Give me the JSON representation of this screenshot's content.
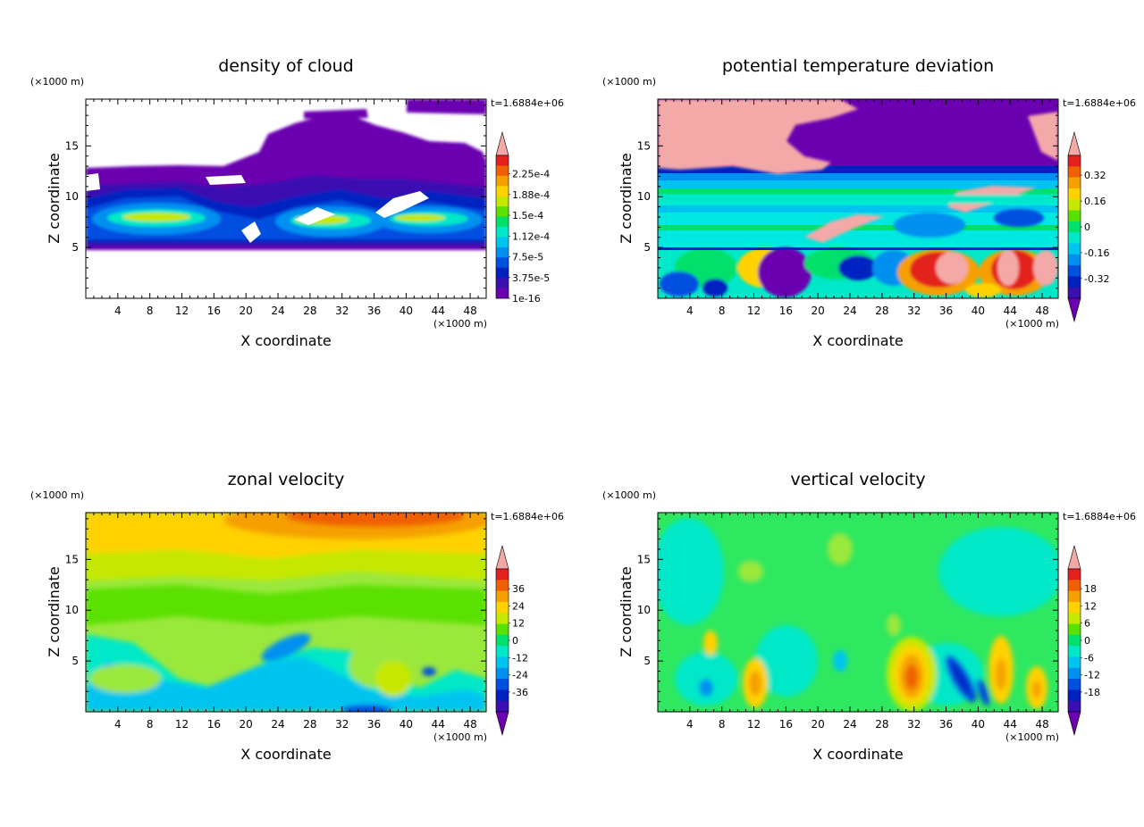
{
  "figure": {
    "background": "#ffffff"
  },
  "chart_data": [
    {
      "type": "heatmap",
      "title": "density of cloud",
      "xlabel": "X coordinate",
      "ylabel": "Z coordinate",
      "x_unit": "(×1000 m)",
      "y_unit": "(×1000 m)",
      "time_label": "t=1.6884e+06",
      "xlim": [
        0,
        50
      ],
      "ylim": [
        0,
        19.6
      ],
      "x_ticks": [
        4,
        8,
        12,
        16,
        20,
        24,
        28,
        32,
        36,
        40,
        44,
        48
      ],
      "y_ticks": [
        5,
        10,
        15
      ],
      "colorbar": {
        "labels": [
          "2.25e-4",
          "1.88e-4",
          "1.5e-4",
          "1.12e-4",
          "7.5e-5",
          "3.75e-5",
          "1e-16"
        ],
        "colors_top_to_bottom": [
          "#f4a9a9",
          "#e3201b",
          "#f06000",
          "#f5a000",
          "#ffd200",
          "#c6e800",
          "#5ae100",
          "#00e06a",
          "#00e8c8",
          "#00c4f0",
          "#0090f0",
          "#0050e0",
          "#0020c0",
          "#3a10b0",
          "#6a00b0"
        ],
        "arrow_top": true,
        "arrow_bottom": false
      },
      "field_background": "#ffffff"
    },
    {
      "type": "heatmap",
      "title": "potential temperature deviation",
      "xlabel": "X coordinate",
      "ylabel": "Z coordinate",
      "x_unit": "(×1000 m)",
      "y_unit": "(×1000 m)",
      "time_label": "t=1.6884e+06",
      "xlim": [
        0,
        50
      ],
      "ylim": [
        0,
        19.6
      ],
      "x_ticks": [
        4,
        8,
        12,
        16,
        20,
        24,
        28,
        32,
        36,
        40,
        44,
        48
      ],
      "y_ticks": [
        5,
        10,
        15
      ],
      "colorbar": {
        "labels": [
          "0.32",
          "0.16",
          "0",
          "-0.16",
          "-0.32"
        ],
        "colors_top_to_bottom": [
          "#f4a9a9",
          "#e3201b",
          "#f06000",
          "#f5a000",
          "#ffd200",
          "#c6e800",
          "#5ae100",
          "#00e06a",
          "#00e8c8",
          "#00c4f0",
          "#0090f0",
          "#0050e0",
          "#0020c0",
          "#3a10b0",
          "#6a00b0"
        ],
        "arrow_top": true,
        "arrow_bottom": true
      },
      "field_background": "#00e8e0"
    },
    {
      "type": "heatmap",
      "title": "zonal velocity",
      "xlabel": "X coordinate",
      "ylabel": "Z coordinate",
      "x_unit": "(×1000 m)",
      "y_unit": "(×1000 m)",
      "time_label": "t=1.6884e+06",
      "xlim": [
        0,
        50
      ],
      "ylim": [
        0,
        19.6
      ],
      "x_ticks": [
        4,
        8,
        12,
        16,
        20,
        24,
        28,
        32,
        36,
        40,
        44,
        48
      ],
      "y_ticks": [
        5,
        10,
        15
      ],
      "colorbar": {
        "labels": [
          "36",
          "24",
          "12",
          "0",
          "-12",
          "-24",
          "-36"
        ],
        "colors_top_to_bottom": [
          "#f4a9a9",
          "#e3201b",
          "#f06000",
          "#f5a000",
          "#ffd200",
          "#c6e800",
          "#5ae100",
          "#00e06a",
          "#00e8c8",
          "#00c4f0",
          "#0090f0",
          "#0050e0",
          "#0020c0",
          "#3a10b0",
          "#6a00b0"
        ],
        "arrow_top": true,
        "arrow_bottom": true
      },
      "field_background": "#9be83c"
    },
    {
      "type": "heatmap",
      "title": "vertical velocity",
      "xlabel": "X coordinate",
      "ylabel": "Z coordinate",
      "x_unit": "(×1000 m)",
      "y_unit": "(×1000 m)",
      "time_label": "t=1.6884e+06",
      "xlim": [
        0,
        50
      ],
      "ylim": [
        0,
        19.6
      ],
      "x_ticks": [
        4,
        8,
        12,
        16,
        20,
        24,
        28,
        32,
        36,
        40,
        44,
        48
      ],
      "y_ticks": [
        5,
        10,
        15
      ],
      "colorbar": {
        "labels": [
          "18",
          "12",
          "6",
          "0",
          "-6",
          "-12",
          "-18"
        ],
        "colors_top_to_bottom": [
          "#f4a9a9",
          "#e3201b",
          "#f06000",
          "#f5a000",
          "#ffd200",
          "#c6e800",
          "#5ae100",
          "#00e06a",
          "#00e8c8",
          "#00c4f0",
          "#0090f0",
          "#0050e0",
          "#0020c0",
          "#3a10b0",
          "#6a00b0"
        ],
        "arrow_top": true,
        "arrow_bottom": true
      },
      "field_background": "#2ee860"
    }
  ]
}
